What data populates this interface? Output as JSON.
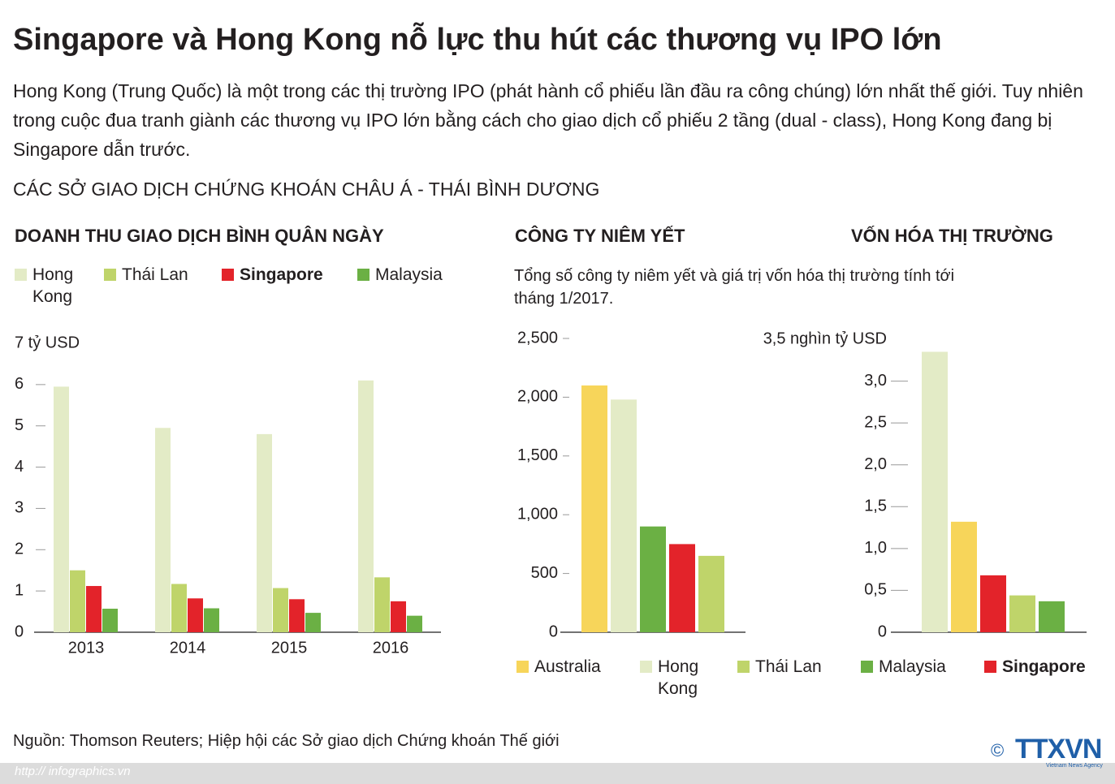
{
  "title": "Singapore và Hong Kong nỗ lực thu hút các thương vụ IPO lớn",
  "intro": "Hong Kong (Trung Quốc) là một trong các thị trường IPO (phát hành cổ phiếu lần đầu ra công chúng) lớn nhất thế giới. Tuy nhiên trong cuộc đua tranh giành các thương vụ IPO lớn bằng cách cho giao dịch cổ phiếu 2 tầng (dual - class), Hong Kong đang bị Singapore dẫn trước.",
  "section": "CÁC SỞ GIAO DỊCH CHỨNG KHOÁN CHÂU Á - THÁI BÌNH DƯƠNG",
  "note": "Tổng số công ty niêm yết và giá trị vốn hóa thị trường tính tới tháng 1/2017.",
  "legend": {
    "items": [
      {
        "name": "Australia",
        "color": "#f7d55a"
      },
      {
        "name": "Hong Kong",
        "color": "#e3ebc6"
      },
      {
        "name": "Thái Lan",
        "color": "#bfd46a"
      },
      {
        "name": "Malaysia",
        "color": "#6bb044"
      },
      {
        "name": "Singapore",
        "color": "#e3232a",
        "bold": true
      }
    ]
  },
  "chart_data": [
    {
      "type": "bar",
      "title": "DOANH THU GIAO DỊCH BÌNH QUÂN NGÀY",
      "categories": [
        "2013",
        "2014",
        "2015",
        "2016"
      ],
      "series": [
        {
          "name": "Hong Kong",
          "color": "#e3ebc6",
          "values": [
            5.95,
            4.95,
            4.8,
            6.1
          ]
        },
        {
          "name": "Thái Lan",
          "color": "#bfd46a",
          "values": [
            1.5,
            1.17,
            1.07,
            1.33
          ]
        },
        {
          "name": "Singapore",
          "color": "#e3232a",
          "bold": true,
          "values": [
            1.12,
            0.82,
            0.8,
            0.75
          ]
        },
        {
          "name": "Malaysia",
          "color": "#6bb044",
          "values": [
            0.57,
            0.58,
            0.47,
            0.4
          ]
        }
      ],
      "ylim": [
        0,
        7
      ],
      "yticks": [
        0,
        1,
        2,
        3,
        4,
        5,
        6,
        {
          "value": 7,
          "label": "7 tỷ USD"
        }
      ]
    },
    {
      "type": "bar",
      "title": "CÔNG TY NIÊM YẾT",
      "categories": [
        "Australia",
        "Hong Kong",
        "Malaysia",
        "Singapore",
        "Thái Lan"
      ],
      "values": [
        2100,
        1980,
        900,
        750,
        650
      ],
      "colors": [
        "#f7d55a",
        "#e3ebc6",
        "#6bb044",
        "#e3232a",
        "#bfd46a"
      ],
      "ylim": [
        0,
        2500
      ],
      "yticks": [
        0,
        500,
        {
          "value": 1000,
          "label": "1,000"
        },
        {
          "value": 1500,
          "label": "1,500"
        },
        {
          "value": 2000,
          "label": "2,000"
        },
        {
          "value": 2500,
          "label": "2,500"
        }
      ]
    },
    {
      "type": "bar",
      "title": "VỐN HÓA THỊ TRƯỜNG",
      "categories": [
        "Hong Kong",
        "Australia",
        "Singapore",
        "Thái Lan",
        "Malaysia"
      ],
      "values": [
        3.35,
        1.32,
        0.68,
        0.44,
        0.37
      ],
      "colors": [
        "#e3ebc6",
        "#f7d55a",
        "#e3232a",
        "#bfd46a",
        "#6bb044"
      ],
      "ylim": [
        0,
        3.5
      ],
      "yticks": [
        0,
        {
          "value": 0.5,
          "label": "0,5"
        },
        {
          "value": 1,
          "label": "1,0"
        },
        {
          "value": 1.5,
          "label": "1,5"
        },
        {
          "value": 2,
          "label": "2,0"
        },
        {
          "value": 2.5,
          "label": "2,5"
        },
        {
          "value": 3,
          "label": "3,0"
        },
        {
          "value": 3.5,
          "label": "3,5 nghìn tỷ USD"
        }
      ]
    }
  ],
  "source": "Nguồn: Thomson Reuters; Hiệp hội các Sở giao dịch Chứng khoán Thế giới",
  "url": "http:// infographics.vn",
  "copyright": "©",
  "logo": "TTXVN",
  "logo_sub": "Vietnam News Agency"
}
